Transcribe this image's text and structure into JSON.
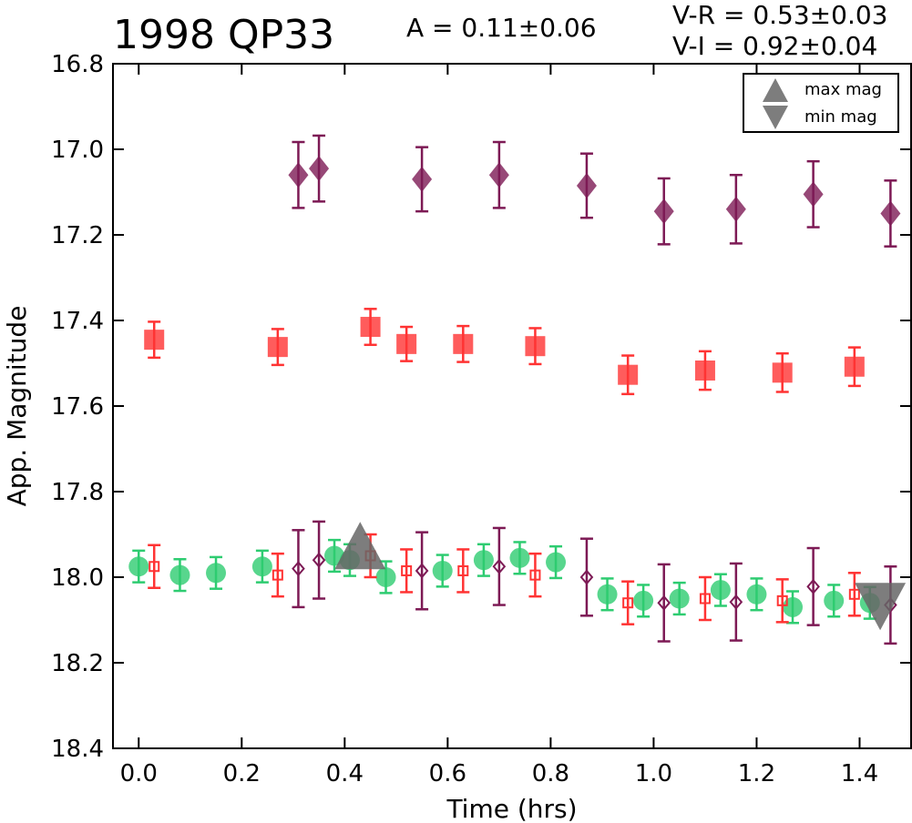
{
  "header": {
    "title": "1998 QP33",
    "amplitude": "A  = 0.11±0.06",
    "color_indices": [
      "V-R = 0.53±0.03",
      "V-I  = 0.92±0.04"
    ]
  },
  "legend": {
    "items": [
      {
        "label": "max mag",
        "symbol": "triangle-up"
      },
      {
        "label": "min mag",
        "symbol": "triangle-down"
      }
    ]
  },
  "colors": {
    "V": "#2ecc71",
    "R": "#ff3333",
    "I": "#7d1a55",
    "minmax": "#666666"
  },
  "chart_data": {
    "type": "scatter",
    "title": "1998 QP33",
    "xlabel": "Time (hrs)",
    "ylabel": "App. Magnitude",
    "xlim": [
      -0.05,
      1.5
    ],
    "ylim": [
      18.4,
      16.8
    ],
    "y_inverted": true,
    "xticks": [
      0.0,
      0.2,
      0.4,
      0.6,
      0.8,
      1.0,
      1.2,
      1.4
    ],
    "xtick_labels": [
      "0.0",
      "0.2",
      "0.4",
      "0.6",
      "0.8",
      "1.0",
      "1.2",
      "1.4"
    ],
    "yticks": [
      16.8,
      17.0,
      17.2,
      17.4,
      17.6,
      17.8,
      18.0,
      18.2,
      18.4
    ],
    "ytick_labels": [
      "16.8",
      "17.0",
      "17.2",
      "17.4",
      "17.6",
      "17.8",
      "18.0",
      "18.2",
      "18.4"
    ],
    "grid": false,
    "legend_position": "top-right",
    "series": [
      {
        "key": "I",
        "marker": "diamond",
        "filled": true,
        "color_key": "I",
        "points": [
          {
            "x": 0.31,
            "y": 17.06,
            "err": 0.077
          },
          {
            "x": 0.35,
            "y": 17.045,
            "err": 0.077
          },
          {
            "x": 0.55,
            "y": 17.07,
            "err": 0.075
          },
          {
            "x": 0.7,
            "y": 17.06,
            "err": 0.077
          },
          {
            "x": 0.87,
            "y": 17.085,
            "err": 0.075
          },
          {
            "x": 1.02,
            "y": 17.145,
            "err": 0.077
          },
          {
            "x": 1.16,
            "y": 17.14,
            "err": 0.08
          },
          {
            "x": 1.31,
            "y": 17.105,
            "err": 0.077
          },
          {
            "x": 1.46,
            "y": 17.15,
            "err": 0.077
          }
        ]
      },
      {
        "key": "R",
        "marker": "square",
        "filled": true,
        "color_key": "R",
        "points": [
          {
            "x": 0.03,
            "y": 17.445,
            "err": 0.042
          },
          {
            "x": 0.27,
            "y": 17.462,
            "err": 0.042
          },
          {
            "x": 0.45,
            "y": 17.415,
            "err": 0.042
          },
          {
            "x": 0.52,
            "y": 17.455,
            "err": 0.04
          },
          {
            "x": 0.63,
            "y": 17.455,
            "err": 0.042
          },
          {
            "x": 0.77,
            "y": 17.46,
            "err": 0.042
          },
          {
            "x": 0.95,
            "y": 17.527,
            "err": 0.045
          },
          {
            "x": 1.1,
            "y": 17.517,
            "err": 0.045
          },
          {
            "x": 1.25,
            "y": 17.522,
            "err": 0.045
          },
          {
            "x": 1.39,
            "y": 17.508,
            "err": 0.045
          }
        ]
      },
      {
        "key": "V",
        "marker": "circle",
        "filled": true,
        "color_key": "V",
        "points": [
          {
            "x": 0.0,
            "y": 17.975,
            "err": 0.037
          },
          {
            "x": 0.08,
            "y": 17.995,
            "err": 0.037
          },
          {
            "x": 0.15,
            "y": 17.99,
            "err": 0.037
          },
          {
            "x": 0.24,
            "y": 17.975,
            "err": 0.037
          },
          {
            "x": 0.38,
            "y": 17.95,
            "err": 0.037
          },
          {
            "x": 0.41,
            "y": 17.96,
            "err": 0.037
          },
          {
            "x": 0.48,
            "y": 18.0,
            "err": 0.037
          },
          {
            "x": 0.59,
            "y": 17.985,
            "err": 0.037
          },
          {
            "x": 0.67,
            "y": 17.96,
            "err": 0.037
          },
          {
            "x": 0.74,
            "y": 17.955,
            "err": 0.037
          },
          {
            "x": 0.81,
            "y": 17.965,
            "err": 0.037
          },
          {
            "x": 0.91,
            "y": 18.04,
            "err": 0.037
          },
          {
            "x": 0.98,
            "y": 18.055,
            "err": 0.037
          },
          {
            "x": 1.05,
            "y": 18.05,
            "err": 0.037
          },
          {
            "x": 1.13,
            "y": 18.03,
            "err": 0.037
          },
          {
            "x": 1.2,
            "y": 18.04,
            "err": 0.037
          },
          {
            "x": 1.27,
            "y": 18.07,
            "err": 0.037
          },
          {
            "x": 1.35,
            "y": 18.055,
            "err": 0.037
          },
          {
            "x": 1.42,
            "y": 18.06,
            "err": 0.037
          }
        ]
      },
      {
        "key": "R",
        "marker": "square",
        "filled": false,
        "color_key": "R",
        "points": [
          {
            "x": 0.03,
            "y": 17.975,
            "err": 0.05
          },
          {
            "x": 0.27,
            "y": 17.995,
            "err": 0.05
          },
          {
            "x": 0.45,
            "y": 17.95,
            "err": 0.05
          },
          {
            "x": 0.52,
            "y": 17.985,
            "err": 0.05
          },
          {
            "x": 0.63,
            "y": 17.985,
            "err": 0.05
          },
          {
            "x": 0.77,
            "y": 17.995,
            "err": 0.05
          },
          {
            "x": 0.95,
            "y": 18.06,
            "err": 0.05
          },
          {
            "x": 1.1,
            "y": 18.05,
            "err": 0.05
          },
          {
            "x": 1.25,
            "y": 18.055,
            "err": 0.05
          },
          {
            "x": 1.39,
            "y": 18.04,
            "err": 0.05
          }
        ]
      },
      {
        "key": "I",
        "marker": "diamond",
        "filled": false,
        "color_key": "I",
        "points": [
          {
            "x": 0.31,
            "y": 17.98,
            "err": 0.09
          },
          {
            "x": 0.35,
            "y": 17.96,
            "err": 0.09
          },
          {
            "x": 0.55,
            "y": 17.985,
            "err": 0.09
          },
          {
            "x": 0.7,
            "y": 17.975,
            "err": 0.09
          },
          {
            "x": 0.87,
            "y": 18.0,
            "err": 0.09
          },
          {
            "x": 1.02,
            "y": 18.06,
            "err": 0.09
          },
          {
            "x": 1.16,
            "y": 18.058,
            "err": 0.09
          },
          {
            "x": 1.31,
            "y": 18.022,
            "err": 0.09
          },
          {
            "x": 1.46,
            "y": 18.065,
            "err": 0.09
          }
        ]
      },
      {
        "key": "max mag",
        "marker": "triangle-up",
        "filled": true,
        "color_key": "minmax",
        "points": [
          {
            "x": 0.43,
            "y": 17.96
          }
        ]
      },
      {
        "key": "min mag",
        "marker": "triangle-down",
        "filled": true,
        "color_key": "minmax",
        "points": [
          {
            "x": 1.44,
            "y": 18.06
          }
        ]
      }
    ]
  }
}
